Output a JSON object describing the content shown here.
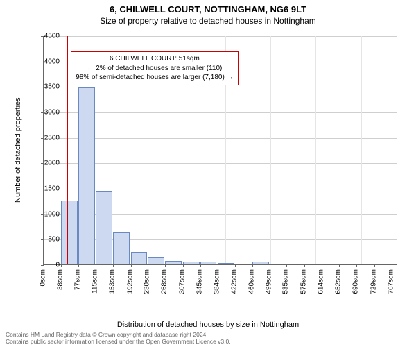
{
  "title_main": "6, CHILWELL COURT, NOTTINGHAM, NG6 9LT",
  "title_sub": "Size of property relative to detached houses in Nottingham",
  "chart": {
    "type": "histogram",
    "ylabel": "Number of detached properties",
    "xlabel": "Distribution of detached houses by size in Nottingham",
    "ylim_max": 4500,
    "ytick_step": 500,
    "yticks": [
      0,
      500,
      1000,
      1500,
      2000,
      2500,
      3000,
      3500,
      4000,
      4500
    ],
    "x_max_sqm": 780,
    "grid_v_step_sqm": 100,
    "xticks": [
      {
        "label": "0sqm",
        "sqm": 0
      },
      {
        "label": "38sqm",
        "sqm": 38
      },
      {
        "label": "77sqm",
        "sqm": 77
      },
      {
        "label": "115sqm",
        "sqm": 115
      },
      {
        "label": "153sqm",
        "sqm": 153
      },
      {
        "label": "192sqm",
        "sqm": 192
      },
      {
        "label": "230sqm",
        "sqm": 230
      },
      {
        "label": "268sqm",
        "sqm": 268
      },
      {
        "label": "307sqm",
        "sqm": 307
      },
      {
        "label": "345sqm",
        "sqm": 345
      },
      {
        "label": "384sqm",
        "sqm": 384
      },
      {
        "label": "422sqm",
        "sqm": 422
      },
      {
        "label": "460sqm",
        "sqm": 460
      },
      {
        "label": "499sqm",
        "sqm": 499
      },
      {
        "label": "535sqm",
        "sqm": 535
      },
      {
        "label": "575sqm",
        "sqm": 575
      },
      {
        "label": "614sqm",
        "sqm": 614
      },
      {
        "label": "652sqm",
        "sqm": 652
      },
      {
        "label": "690sqm",
        "sqm": 690
      },
      {
        "label": "729sqm",
        "sqm": 729
      },
      {
        "label": "767sqm",
        "sqm": 767
      }
    ],
    "bin_width_sqm": 38,
    "bars": [
      {
        "bin_start_sqm": 0,
        "value": 0
      },
      {
        "bin_start_sqm": 38,
        "value": 1260
      },
      {
        "bin_start_sqm": 77,
        "value": 3480
      },
      {
        "bin_start_sqm": 115,
        "value": 1450
      },
      {
        "bin_start_sqm": 153,
        "value": 630
      },
      {
        "bin_start_sqm": 192,
        "value": 250
      },
      {
        "bin_start_sqm": 230,
        "value": 130
      },
      {
        "bin_start_sqm": 268,
        "value": 70
      },
      {
        "bin_start_sqm": 307,
        "value": 55
      },
      {
        "bin_start_sqm": 345,
        "value": 50
      },
      {
        "bin_start_sqm": 384,
        "value": 30
      },
      {
        "bin_start_sqm": 422,
        "value": 0
      },
      {
        "bin_start_sqm": 460,
        "value": 55
      },
      {
        "bin_start_sqm": 499,
        "value": 0
      },
      {
        "bin_start_sqm": 535,
        "value": 5
      },
      {
        "bin_start_sqm": 575,
        "value": 5
      },
      {
        "bin_start_sqm": 614,
        "value": 0
      },
      {
        "bin_start_sqm": 652,
        "value": 0
      },
      {
        "bin_start_sqm": 690,
        "value": 0
      },
      {
        "bin_start_sqm": 729,
        "value": 0
      }
    ],
    "bar_fill": "#cdd9f0",
    "bar_stroke": "#6a89c0",
    "grid_color": "#cfcfcf",
    "background_color": "#ffffff",
    "reference_line": {
      "sqm": 51,
      "color": "#cc0000",
      "width": 2
    },
    "annotation": {
      "line1": "6 CHILWELL COURT: 51sqm",
      "line2": "← 2% of detached houses are smaller (110)",
      "line3": "98% of semi-detached houses are larger (7,180) →",
      "border_color": "#cc0000",
      "left_sqm": 60,
      "top_value": 4200
    }
  },
  "footer": {
    "line1": "Contains HM Land Registry data © Crown copyright and database right 2024.",
    "line2": "Contains public sector information licensed under the Open Government Licence v3.0."
  }
}
